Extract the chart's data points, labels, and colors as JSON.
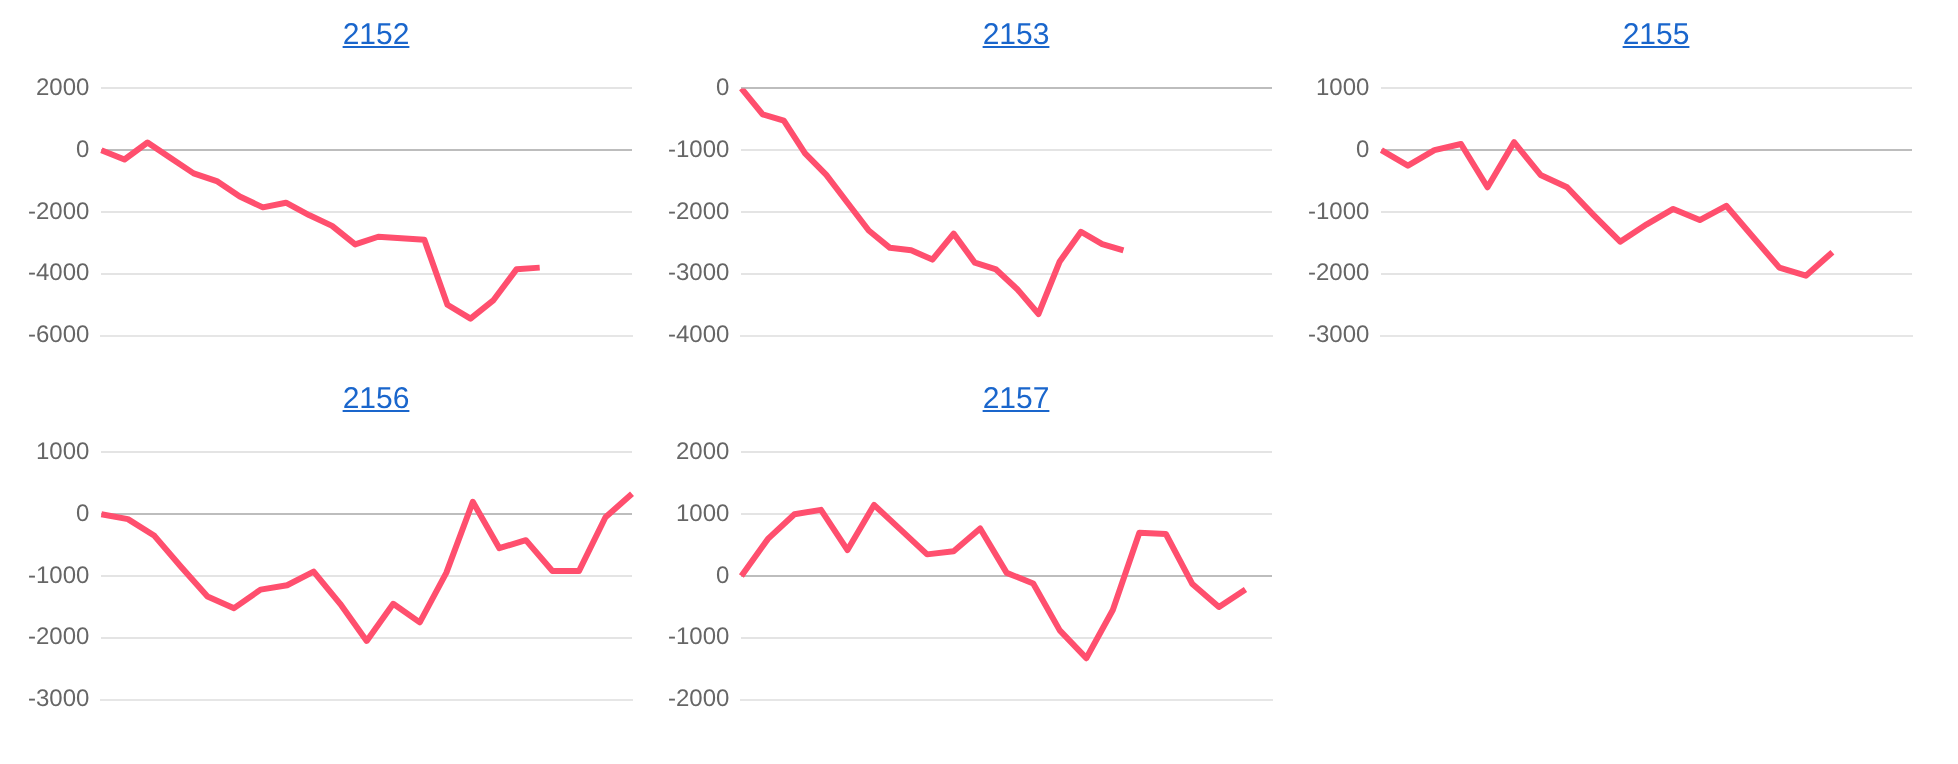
{
  "chart_data": [
    {
      "type": "line",
      "title": "2152",
      "categories": [
        null,
        null,
        null,
        null,
        null,
        null,
        null,
        null,
        null,
        null,
        null,
        null,
        null,
        null,
        null,
        null,
        null,
        null,
        null,
        null,
        null,
        null,
        null,
        null
      ],
      "series": [
        {
          "color": "#ff4f6e",
          "values": [
            0,
            -300,
            250,
            -250,
            -750,
            -1000,
            -1500,
            -1850,
            -1700,
            -2100,
            -2450,
            -3050,
            -2800,
            -2850,
            -2900,
            -5000,
            -5450,
            -4850,
            -3850,
            -3800,
            null,
            null,
            null,
            null
          ]
        }
      ],
      "ylim": [
        -6000,
        2000
      ],
      "yticks": [
        -6000,
        -4000,
        -2000,
        0,
        2000
      ],
      "grid": "y",
      "tick_labels": "y",
      "marker": "none"
    },
    {
      "type": "line",
      "title": "2153",
      "categories": [
        null,
        null,
        null,
        null,
        null,
        null,
        null,
        null,
        null,
        null,
        null,
        null,
        null,
        null,
        null,
        null,
        null,
        null,
        null,
        null,
        null,
        null,
        null,
        null,
        null,
        null
      ],
      "series": [
        {
          "color": "#ff4f6e",
          "values": [
            0,
            -420,
            -520,
            -1050,
            -1400,
            -1850,
            -2300,
            -2580,
            -2620,
            -2770,
            -2350,
            -2820,
            -2930,
            -3250,
            -3650,
            -2800,
            -2320,
            -2520,
            -2620,
            null,
            null,
            null,
            null,
            null,
            null,
            null
          ]
        }
      ],
      "ylim": [
        -4000,
        0
      ],
      "yticks": [
        -4000,
        -3000,
        -2000,
        -1000,
        0
      ],
      "grid": "y",
      "tick_labels": "y",
      "marker": "none"
    },
    {
      "type": "line",
      "title": "2155",
      "categories": [
        null,
        null,
        null,
        null,
        null,
        null,
        null,
        null,
        null,
        null,
        null,
        null,
        null,
        null,
        null,
        null,
        null,
        null,
        null,
        null,
        null
      ],
      "series": [
        {
          "color": "#ff4f6e",
          "values": [
            0,
            -250,
            0,
            100,
            -600,
            130,
            -400,
            -600,
            -1050,
            -1480,
            -1200,
            -950,
            -1130,
            -900,
            -1400,
            -1900,
            -2030,
            -1650,
            null,
            null,
            null
          ]
        }
      ],
      "ylim": [
        -3000,
        1000
      ],
      "yticks": [
        -3000,
        -2000,
        -1000,
        0,
        1000
      ],
      "grid": "y",
      "tick_labels": "y",
      "marker": "none"
    },
    {
      "type": "line",
      "title": "2156",
      "categories": [
        null,
        null,
        null,
        null,
        null,
        null,
        null,
        null,
        null,
        null,
        null,
        null,
        null,
        null,
        null,
        null,
        null,
        null,
        null,
        null,
        null
      ],
      "series": [
        {
          "color": "#ff4f6e",
          "values": [
            0,
            -80,
            -350,
            -850,
            -1330,
            -1520,
            -1220,
            -1150,
            -930,
            -1450,
            -2050,
            -1450,
            -1750,
            -950,
            200,
            -550,
            -420,
            -920,
            -920,
            -50,
            330
          ]
        }
      ],
      "ylim": [
        -3000,
        1000
      ],
      "yticks": [
        -3000,
        -2000,
        -1000,
        0,
        1000
      ],
      "grid": "y",
      "tick_labels": "y",
      "marker": "none"
    },
    {
      "type": "line",
      "title": "2157",
      "categories": [
        null,
        null,
        null,
        null,
        null,
        null,
        null,
        null,
        null,
        null,
        null,
        null,
        null,
        null,
        null,
        null,
        null,
        null,
        null,
        null,
        null
      ],
      "series": [
        {
          "color": "#ff4f6e",
          "values": [
            0,
            600,
            1000,
            1070,
            420,
            1150,
            750,
            350,
            400,
            770,
            50,
            -120,
            -880,
            -1330,
            -550,
            700,
            680,
            -130,
            -500,
            -220,
            null
          ]
        }
      ],
      "ylim": [
        -2000,
        2000
      ],
      "yticks": [
        -2000,
        -1000,
        0,
        1000,
        2000
      ],
      "grid": "y",
      "tick_labels": "y",
      "marker": "none"
    }
  ]
}
